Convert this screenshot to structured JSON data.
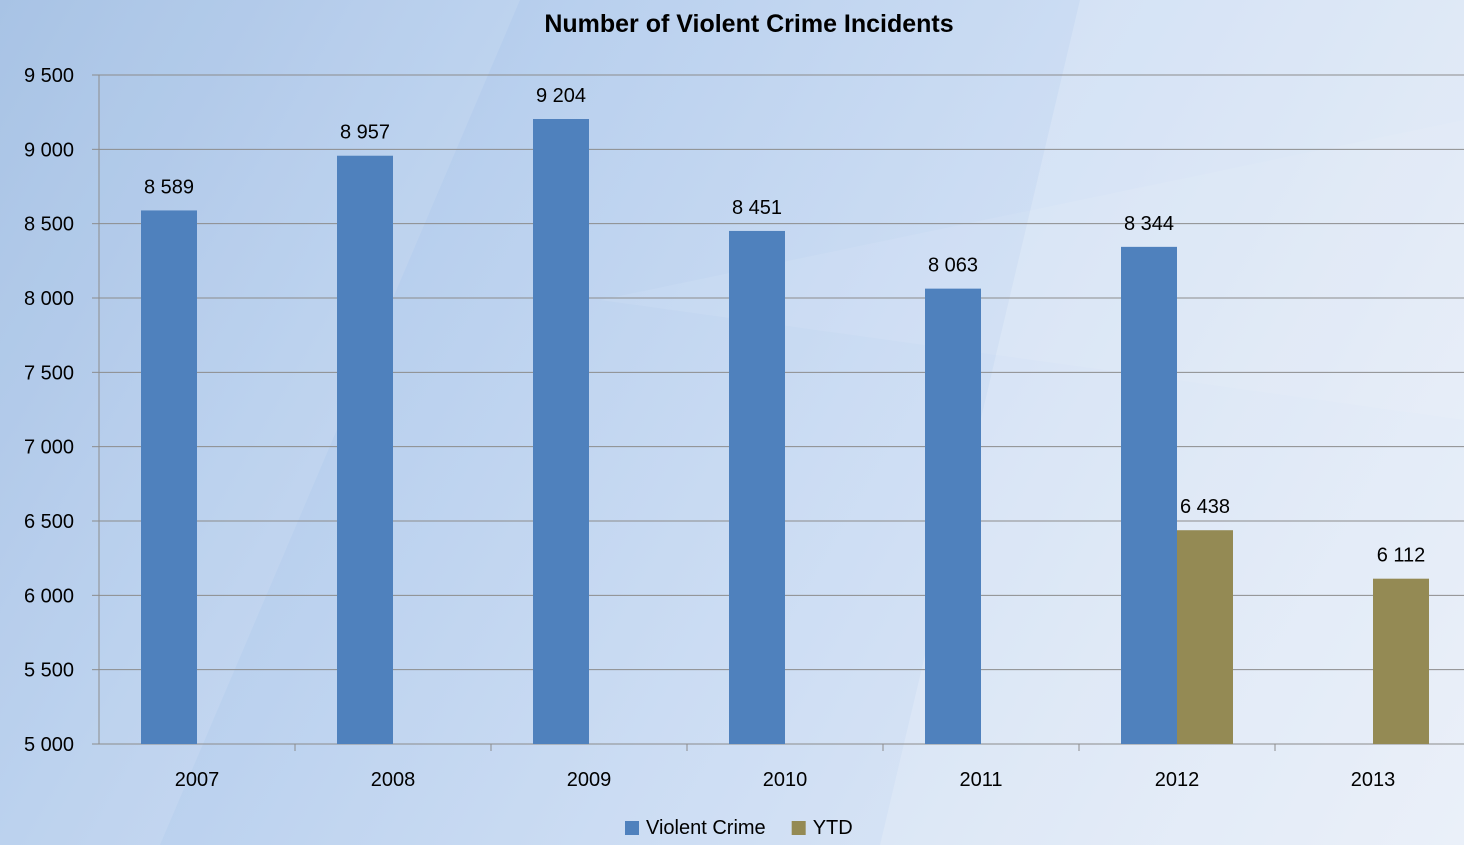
{
  "chart_data": {
    "type": "bar",
    "title": "Number of Violent Crime Incidents",
    "xlabel": "",
    "ylabel": "",
    "categories": [
      "2007",
      "2008",
      "2009",
      "2010",
      "2011",
      "2012",
      "2013"
    ],
    "series": [
      {
        "name": "Violent Crime",
        "color": "#4f81bd",
        "values": [
          8589,
          8957,
          9204,
          8451,
          8063,
          8344,
          null
        ],
        "labels": [
          "8 589",
          "8 957",
          "9 204",
          "8 451",
          "8 063",
          "8 344",
          ""
        ]
      },
      {
        "name": "YTD",
        "color": "#948a54",
        "values": [
          null,
          null,
          null,
          null,
          null,
          6438,
          6112
        ],
        "labels": [
          "",
          "",
          "",
          "",
          "",
          "6 438",
          "6 112"
        ]
      }
    ],
    "ylim": [
      5000,
      9500
    ],
    "yticks": [
      5000,
      5500,
      6000,
      6500,
      7000,
      7500,
      8000,
      8500,
      9000,
      9500
    ],
    "ytick_labels": [
      "5 000",
      "5 500",
      "6 000",
      "6 500",
      "7 000",
      "7 500",
      "8 000",
      "8 500",
      "9 000",
      "9 500"
    ],
    "grid": true,
    "legend": "bottom"
  }
}
